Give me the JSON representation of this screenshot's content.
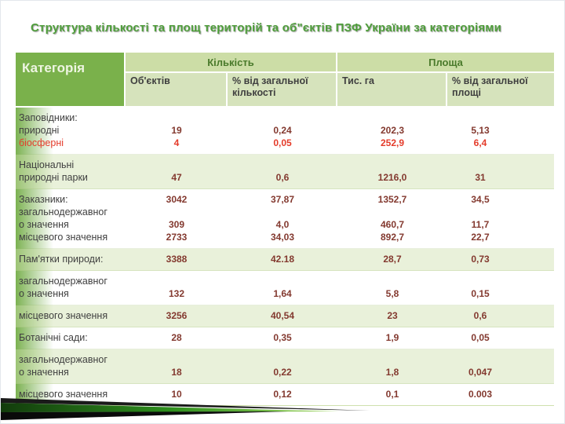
{
  "slide": {
    "title": "Структура кількості та площ територій та об\"єктів ПЗФ України за категоріями"
  },
  "table": {
    "header": {
      "category": "Категорія",
      "quantity_group": "Кількість",
      "area_group": "Площа",
      "columns": [
        "Об'єктів",
        "% від загальної кількості",
        "Тис. га",
        "% від загальної площі"
      ]
    },
    "groups": [
      {
        "band": false,
        "lines": [
          {
            "cat": "Заповідники:",
            "vals": [
              "",
              "",
              "",
              ""
            ]
          },
          {
            "cat": "природні",
            "vals": [
              "19",
              "0,24",
              "202,3",
              "5,13"
            ]
          },
          {
            "cat": "біосферні",
            "red": true,
            "vals": [
              "4",
              "0,05",
              "252,9",
              "6,4"
            ]
          }
        ]
      },
      {
        "band": true,
        "lines": [
          {
            "cat": "Національні",
            "vals": [
              "",
              "",
              "",
              ""
            ]
          },
          {
            "cat": "природні парки",
            "vals": [
              "47",
              "0,6",
              "1216,0",
              "31"
            ]
          }
        ]
      },
      {
        "band": false,
        "lines": [
          {
            "cat": "Заказники:",
            "vals": [
              "3042",
              "37,87",
              "1352,7",
              "34,5"
            ]
          },
          {
            "cat": "загальнодержавног",
            "vals": [
              "",
              "",
              "",
              ""
            ]
          },
          {
            "cat": "о значення",
            "vals": [
              "309",
              "4,0",
              "460,7",
              "11,7"
            ]
          },
          {
            "cat": "місцевого значення",
            "vals": [
              "2733",
              "34,03",
              "892,7",
              "22,7"
            ]
          }
        ]
      },
      {
        "band": true,
        "lines": [
          {
            "cat": "Пам'ятки природи:",
            "vals": [
              "3388",
              "42.18",
              "28,7",
              "0,73"
            ]
          }
        ]
      },
      {
        "band": false,
        "lines": [
          {
            "cat": "загальнодержавног",
            "vals": [
              "",
              "",
              "",
              ""
            ]
          },
          {
            "cat": "о значення",
            "vals": [
              "132",
              "1,64",
              "5,8",
              "0,15"
            ]
          }
        ]
      },
      {
        "band": true,
        "lines": [
          {
            "cat": "місцевого значення",
            "vals": [
              "3256",
              "40,54",
              "23",
              "0,6"
            ]
          }
        ]
      },
      {
        "band": false,
        "lines": [
          {
            "cat": "Ботанічні сади:",
            "vals": [
              "28",
              "0,35",
              "1,9",
              "0,05"
            ]
          }
        ]
      },
      {
        "band": true,
        "lines": [
          {
            "cat": "загальнодержавног",
            "vals": [
              "",
              "",
              "",
              ""
            ]
          },
          {
            "cat": "о значення",
            "vals": [
              "18",
              "0,22",
              "1,8",
              "0,047"
            ]
          }
        ]
      },
      {
        "band": false,
        "lines": [
          {
            "cat": "місцевого значення",
            "vals": [
              "10",
              "0,12",
              "0,1",
              "0.003"
            ]
          }
        ]
      }
    ]
  },
  "colors": {
    "title_green": "#4f9e3b",
    "header_green": "#7ab14b",
    "header_light_green": "#d6e3bc",
    "band_green": "#e7efd8",
    "value_dark_red": "#83392f",
    "highlight_red": "#e43b2a"
  }
}
